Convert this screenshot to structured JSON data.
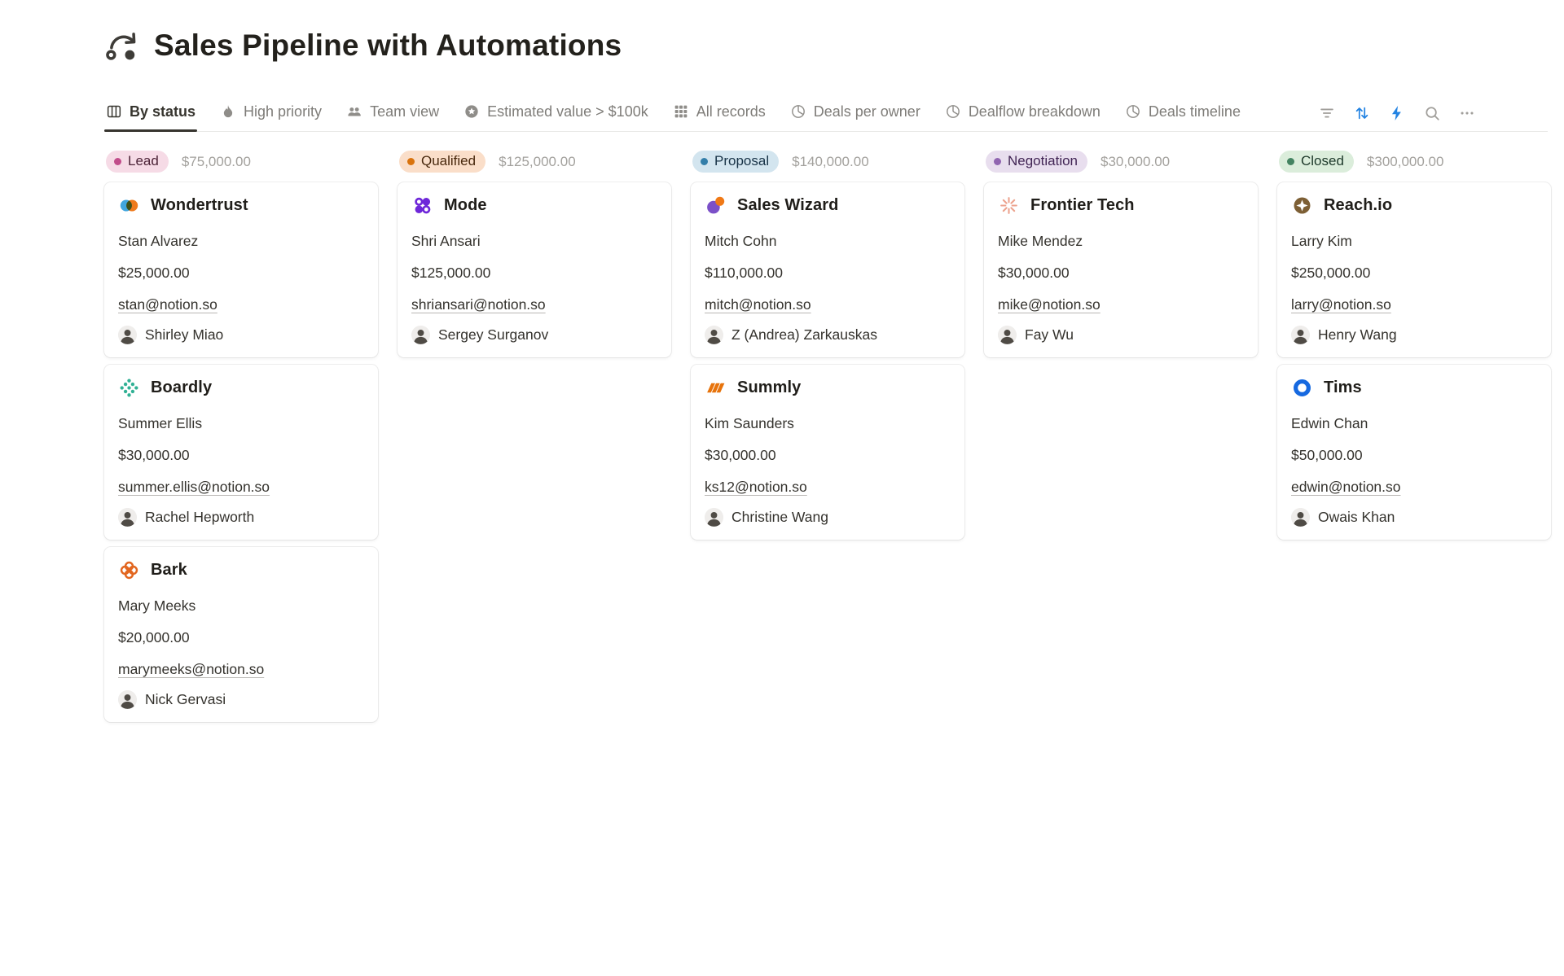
{
  "page": {
    "title": "Sales Pipeline with Automations"
  },
  "toolbar": {
    "tabs": [
      {
        "label": "By status",
        "icon": "board-view-icon",
        "active": true
      },
      {
        "label": "High priority",
        "icon": "flame-icon",
        "active": false
      },
      {
        "label": "Team view",
        "icon": "people-icon",
        "active": false
      },
      {
        "label": "Estimated value > $100k",
        "icon": "star-circle-icon",
        "active": false
      },
      {
        "label": "All records",
        "icon": "table-grid-icon",
        "active": false
      },
      {
        "label": "Deals per owner",
        "icon": "pie-chart-icon",
        "active": false
      },
      {
        "label": "Dealflow breakdown",
        "icon": "pie-chart-icon",
        "active": false
      },
      {
        "label": "Deals timeline",
        "icon": "pie-chart-icon",
        "active": false
      }
    ],
    "actions": [
      {
        "name": "filter-icon",
        "active": false
      },
      {
        "name": "sort-icon",
        "active": true
      },
      {
        "name": "automations-icon",
        "active": true
      },
      {
        "name": "search-icon",
        "active": false
      },
      {
        "name": "more-icon",
        "active": false
      }
    ],
    "accent_blue": "#2383E2"
  },
  "board": {
    "columns": [
      {
        "status": "Lead",
        "total": "$75,000.00",
        "colors": {
          "badge_bg": "#F6DBE6",
          "dot": "#C14C8A",
          "badge_text": "#4C2337"
        },
        "cards": [
          {
            "company": "Wondertrust",
            "logo": "wondertrust",
            "contact": "Stan Alvarez",
            "value": "$25,000.00",
            "email": "stan@notion.so",
            "owner": "Shirley Miao"
          },
          {
            "company": "Boardly",
            "logo": "boardly",
            "contact": "Summer Ellis",
            "value": "$30,000.00",
            "email": "summer.ellis@notion.so",
            "owner": "Rachel Hepworth"
          },
          {
            "company": "Bark",
            "logo": "bark",
            "contact": "Mary Meeks",
            "value": "$20,000.00",
            "email": "marymeeks@notion.so",
            "owner": "Nick Gervasi"
          }
        ]
      },
      {
        "status": "Qualified",
        "total": "$125,000.00",
        "colors": {
          "badge_bg": "#FADEC9",
          "dot": "#D9730D",
          "badge_text": "#49290E"
        },
        "cards": [
          {
            "company": "Mode",
            "logo": "mode",
            "contact": "Shri Ansari",
            "value": "$125,000.00",
            "email": "shriansari@notion.so",
            "owner": "Sergey Surganov"
          }
        ]
      },
      {
        "status": "Proposal",
        "total": "$140,000.00",
        "colors": {
          "badge_bg": "#D3E5EF",
          "dot": "#337EA9",
          "badge_text": "#183347"
        },
        "cards": [
          {
            "company": "Sales Wizard",
            "logo": "saleswizard",
            "contact": "Mitch Cohn",
            "value": "$110,000.00",
            "email": "mitch@notion.so",
            "owner": "Z (Andrea) Zarkauskas"
          },
          {
            "company": "Summly",
            "logo": "summly",
            "contact": "Kim Saunders",
            "value": "$30,000.00",
            "email": "ks12@notion.so",
            "owner": "Christine Wang"
          }
        ]
      },
      {
        "status": "Negotiation",
        "total": "$30,000.00",
        "colors": {
          "badge_bg": "#E8DEEE",
          "dot": "#9065B0",
          "badge_text": "#412454"
        },
        "cards": [
          {
            "company": "Frontier Tech",
            "logo": "frontier",
            "contact": "Mike Mendez",
            "value": "$30,000.00",
            "email": "mike@notion.so",
            "owner": "Fay Wu"
          }
        ]
      },
      {
        "status": "Closed",
        "total": "$300,000.00",
        "colors": {
          "badge_bg": "#DBEDDB",
          "dot": "#448361",
          "badge_text": "#1C3829"
        },
        "cards": [
          {
            "company": "Reach.io",
            "logo": "reach",
            "contact": "Larry Kim",
            "value": "$250,000.00",
            "email": "larry@notion.so",
            "owner": "Henry Wang"
          },
          {
            "company": "Tims",
            "logo": "tims",
            "contact": "Edwin Chan",
            "value": "$50,000.00",
            "email": "edwin@notion.so",
            "owner": "Owais Khan"
          }
        ]
      }
    ]
  }
}
